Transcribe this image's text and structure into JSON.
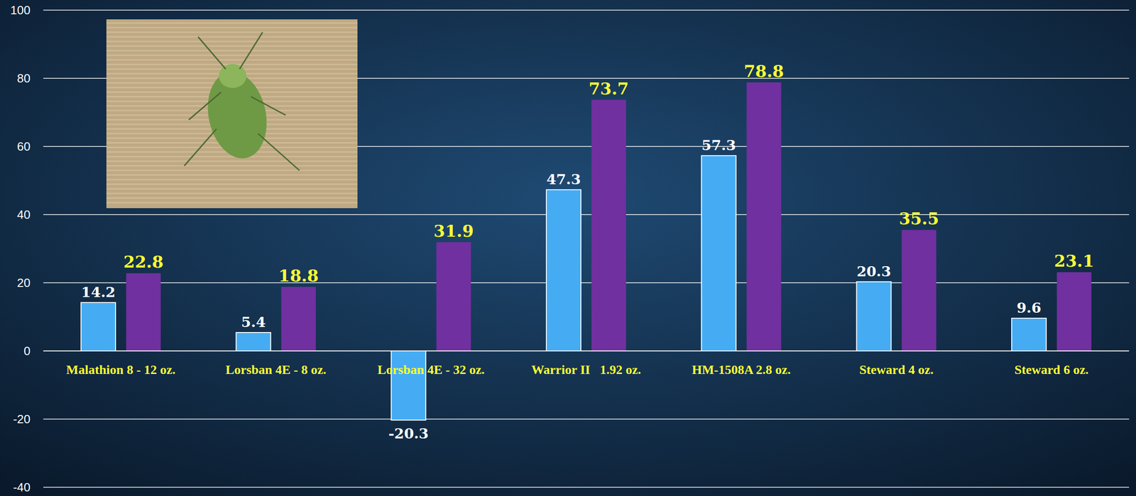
{
  "chart_data": {
    "type": "bar",
    "categories": [
      "Malathion 8 - 12 oz.",
      "Lorsban 4E - 8 oz.",
      "Lorsban 4E - 32 oz.",
      "Warrior II   1.92 oz.",
      "HM-1508A 2.8 oz.",
      "Steward 4 oz.",
      "Steward 6 oz."
    ],
    "series": [
      {
        "color": "#45acf3",
        "values": [
          14.2,
          5.4,
          -20.3,
          47.3,
          57.3,
          20.3,
          9.6
        ]
      },
      {
        "color": "#7030a0",
        "values": [
          22.8,
          18.8,
          31.9,
          73.7,
          78.8,
          35.5,
          23.1
        ]
      }
    ],
    "ylim": [
      -40,
      100
    ],
    "yticks": [
      -40,
      -20,
      0,
      20,
      40,
      60,
      80,
      100
    ],
    "grid": true,
    "data_labels": true
  }
}
